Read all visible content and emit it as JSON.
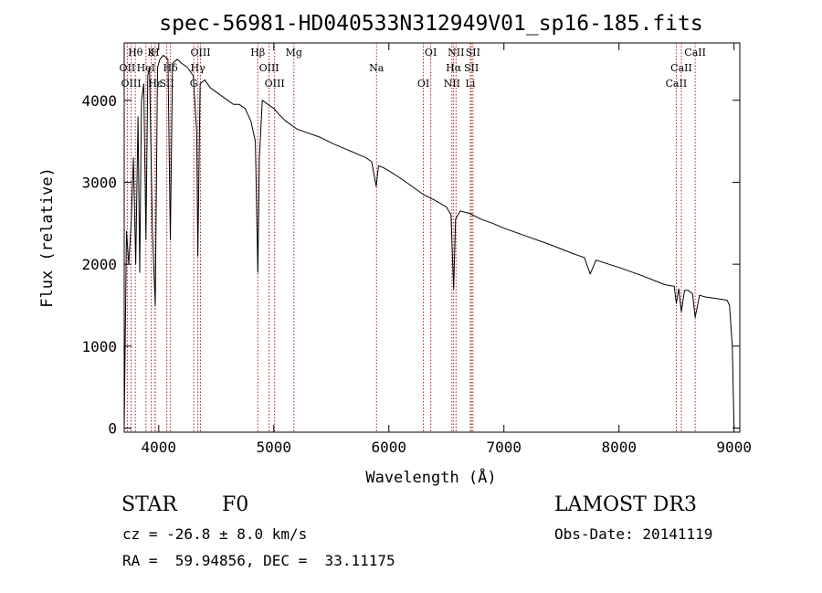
{
  "chart_data": {
    "type": "line",
    "title": "spec-56981-HD040533N312949V01_sp16-185.fits",
    "xlabel": "Wavelength (Å)",
    "ylabel": "Flux (relative)",
    "xlim": [
      3700,
      9050
    ],
    "ylim": [
      -50,
      4700
    ],
    "x_ticks": [
      4000,
      5000,
      6000,
      7000,
      8000,
      9000
    ],
    "x_tick_labels": [
      "4000",
      "5000",
      "6000",
      "7000",
      "8000",
      "9000"
    ],
    "y_ticks": [
      0,
      1000,
      2000,
      3000,
      4000
    ],
    "y_tick_labels": [
      "0",
      "1000",
      "2000",
      "3000",
      "4000"
    ],
    "grid": false,
    "series": [
      {
        "name": "spectrum",
        "color": "#000000",
        "x": [
          3700,
          3720,
          3740,
          3760,
          3780,
          3800,
          3820,
          3835,
          3850,
          3870,
          3889,
          3905,
          3920,
          3945,
          3970,
          3990,
          4010,
          4040,
          4080,
          4101,
          4120,
          4160,
          4200,
          4250,
          4300,
          4330,
          4340,
          4360,
          4400,
          4450,
          4500,
          4550,
          4600,
          4650,
          4700,
          4750,
          4800,
          4840,
          4861,
          4875,
          4900,
          4950,
          5000,
          5050,
          5100,
          5150,
          5200,
          5300,
          5400,
          5500,
          5600,
          5700,
          5800,
          5850,
          5890,
          5910,
          5950,
          6000,
          6100,
          6200,
          6300,
          6400,
          6450,
          6500,
          6540,
          6563,
          6580,
          6620,
          6700,
          6800,
          6900,
          7000,
          7200,
          7400,
          7600,
          7700,
          7750,
          7800,
          8000,
          8200,
          8400,
          8480,
          8498,
          8520,
          8542,
          8570,
          8600,
          8640,
          8662,
          8700,
          8750,
          8800,
          8850,
          8900,
          8940,
          8960,
          8985,
          9000
        ],
        "values": [
          0,
          2400,
          2000,
          2500,
          3300,
          2000,
          3800,
          1900,
          4000,
          4200,
          2300,
          4300,
          4400,
          2400,
          1500,
          4400,
          4500,
          4550,
          4500,
          2300,
          4450,
          4500,
          4450,
          4400,
          4300,
          3600,
          2100,
          4200,
          4250,
          4150,
          4100,
          4050,
          4000,
          3950,
          3950,
          3900,
          3750,
          3500,
          1900,
          3300,
          4000,
          3950,
          3900,
          3820,
          3750,
          3700,
          3650,
          3600,
          3550,
          3480,
          3420,
          3360,
          3300,
          3250,
          2950,
          3200,
          3180,
          3140,
          3050,
          2950,
          2850,
          2780,
          2740,
          2700,
          2600,
          1700,
          2550,
          2650,
          2620,
          2550,
          2500,
          2440,
          2340,
          2240,
          2130,
          2080,
          1880,
          2050,
          1960,
          1860,
          1750,
          1730,
          1520,
          1700,
          1420,
          1680,
          1680,
          1640,
          1350,
          1620,
          1600,
          1590,
          1580,
          1570,
          1560,
          1500,
          1000,
          0
        ]
      }
    ],
    "lines": [
      {
        "label": "Hθ",
        "x": 3797
      },
      {
        "label": "OII",
        "x": 3727
      },
      {
        "label": "OIII",
        "x": 3760
      },
      {
        "label": "K",
        "x": 3934
      },
      {
        "label": "HeI",
        "x": 3889
      },
      {
        "label": "Hε",
        "x": 3970
      },
      {
        "label": "H",
        "x": 3968
      },
      {
        "label": "Hδ",
        "x": 4102
      },
      {
        "label": "SII",
        "x": 4070
      },
      {
        "label": "OIII",
        "x": 4363
      },
      {
        "label": "Hγ",
        "x": 4340
      },
      {
        "label": "G",
        "x": 4304
      },
      {
        "label": "Hβ",
        "x": 4861
      },
      {
        "label": "OIII",
        "x": 4959
      },
      {
        "label": "OIII",
        "x": 5007
      },
      {
        "label": "Mg",
        "x": 5175
      },
      {
        "label": "Na",
        "x": 5893
      },
      {
        "label": "OI",
        "x": 6300
      },
      {
        "label": "OI",
        "x": 6364
      },
      {
        "label": "Hα",
        "x": 6563
      },
      {
        "label": "NII",
        "x": 6548
      },
      {
        "label": "NII",
        "x": 6584
      },
      {
        "label": "SII",
        "x": 6717
      },
      {
        "label": "Li",
        "x": 6708
      },
      {
        "label": "SII",
        "x": 6731
      },
      {
        "label": "CaII",
        "x": 8542
      },
      {
        "label": "CaII",
        "x": 8498
      },
      {
        "label": "CaII",
        "x": 8662
      }
    ],
    "line_color": "#b22222"
  },
  "info": {
    "object_class": "STAR",
    "subclass": "F0",
    "survey": "LAMOST DR3",
    "redshift_text": "cz = -26.8 ± 8.0 km/s",
    "obs_date": "Obs-Date: 20141119",
    "coords": "RA =  59.94856, DEC =  33.11175"
  }
}
